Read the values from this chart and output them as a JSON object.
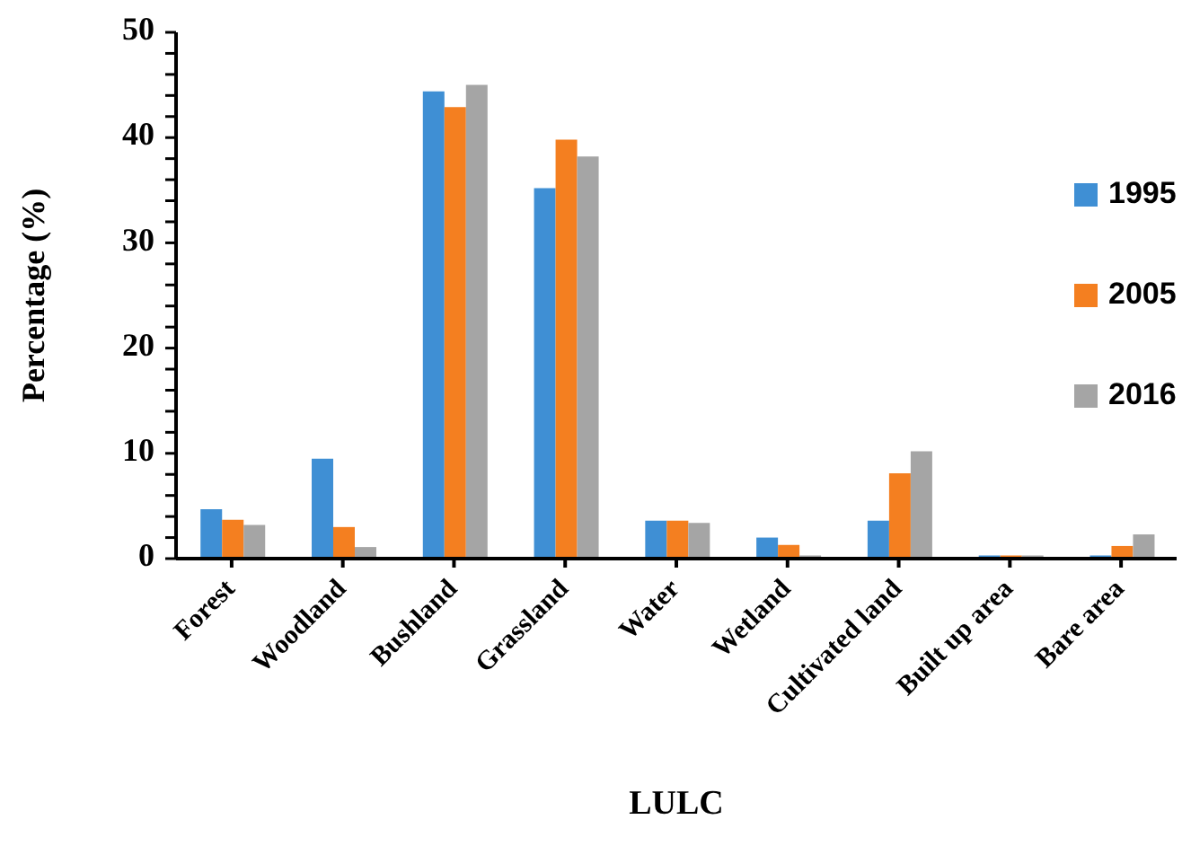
{
  "chart_data": {
    "type": "bar",
    "xlabel": "LULC",
    "ylabel": "Percentage (%)",
    "categories": [
      "Forest",
      "Woodland",
      "Bushland",
      "Grassland",
      "Water",
      "Wetland",
      "Cultivated land",
      "Built up area",
      "Bare area"
    ],
    "series": [
      {
        "name": "1995",
        "color": "#3f8fd4",
        "values": [
          4.7,
          9.5,
          44.4,
          35.2,
          3.6,
          2.0,
          3.6,
          0.3,
          0.3
        ]
      },
      {
        "name": "2005",
        "color": "#f47f20",
        "values": [
          3.7,
          3.0,
          42.9,
          39.8,
          3.6,
          1.3,
          8.1,
          0.3,
          1.2
        ]
      },
      {
        "name": "2016",
        "color": "#a5a5a5",
        "values": [
          3.2,
          1.1,
          45.0,
          38.2,
          3.4,
          0.3,
          10.2,
          0.3,
          2.3
        ]
      }
    ],
    "ylim": [
      0,
      50
    ],
    "yticks": [
      0,
      {
        "value": 2,
        "label": null
      },
      {
        "value": 4,
        "label": null
      },
      {
        "value": 6,
        "label": null
      },
      {
        "value": 8,
        "label": null
      },
      10,
      {
        "value": 12,
        "label": null
      },
      {
        "value": 14,
        "label": null
      },
      {
        "value": 16,
        "label": null
      },
      {
        "value": 18,
        "label": null
      },
      20,
      {
        "value": 22,
        "label": null
      },
      {
        "value": 24,
        "label": null
      },
      {
        "value": 26,
        "label": null
      },
      {
        "value": 28,
        "label": null
      },
      30,
      {
        "value": 32,
        "label": null
      },
      {
        "value": 34,
        "label": null
      },
      {
        "value": 36,
        "label": null
      },
      {
        "value": 38,
        "label": null
      },
      40,
      {
        "value": 42,
        "label": null
      },
      {
        "value": 44,
        "label": null
      },
      {
        "value": 46,
        "label": null
      },
      {
        "value": 48,
        "label": null
      },
      50
    ],
    "grid": false,
    "legend": "right"
  }
}
